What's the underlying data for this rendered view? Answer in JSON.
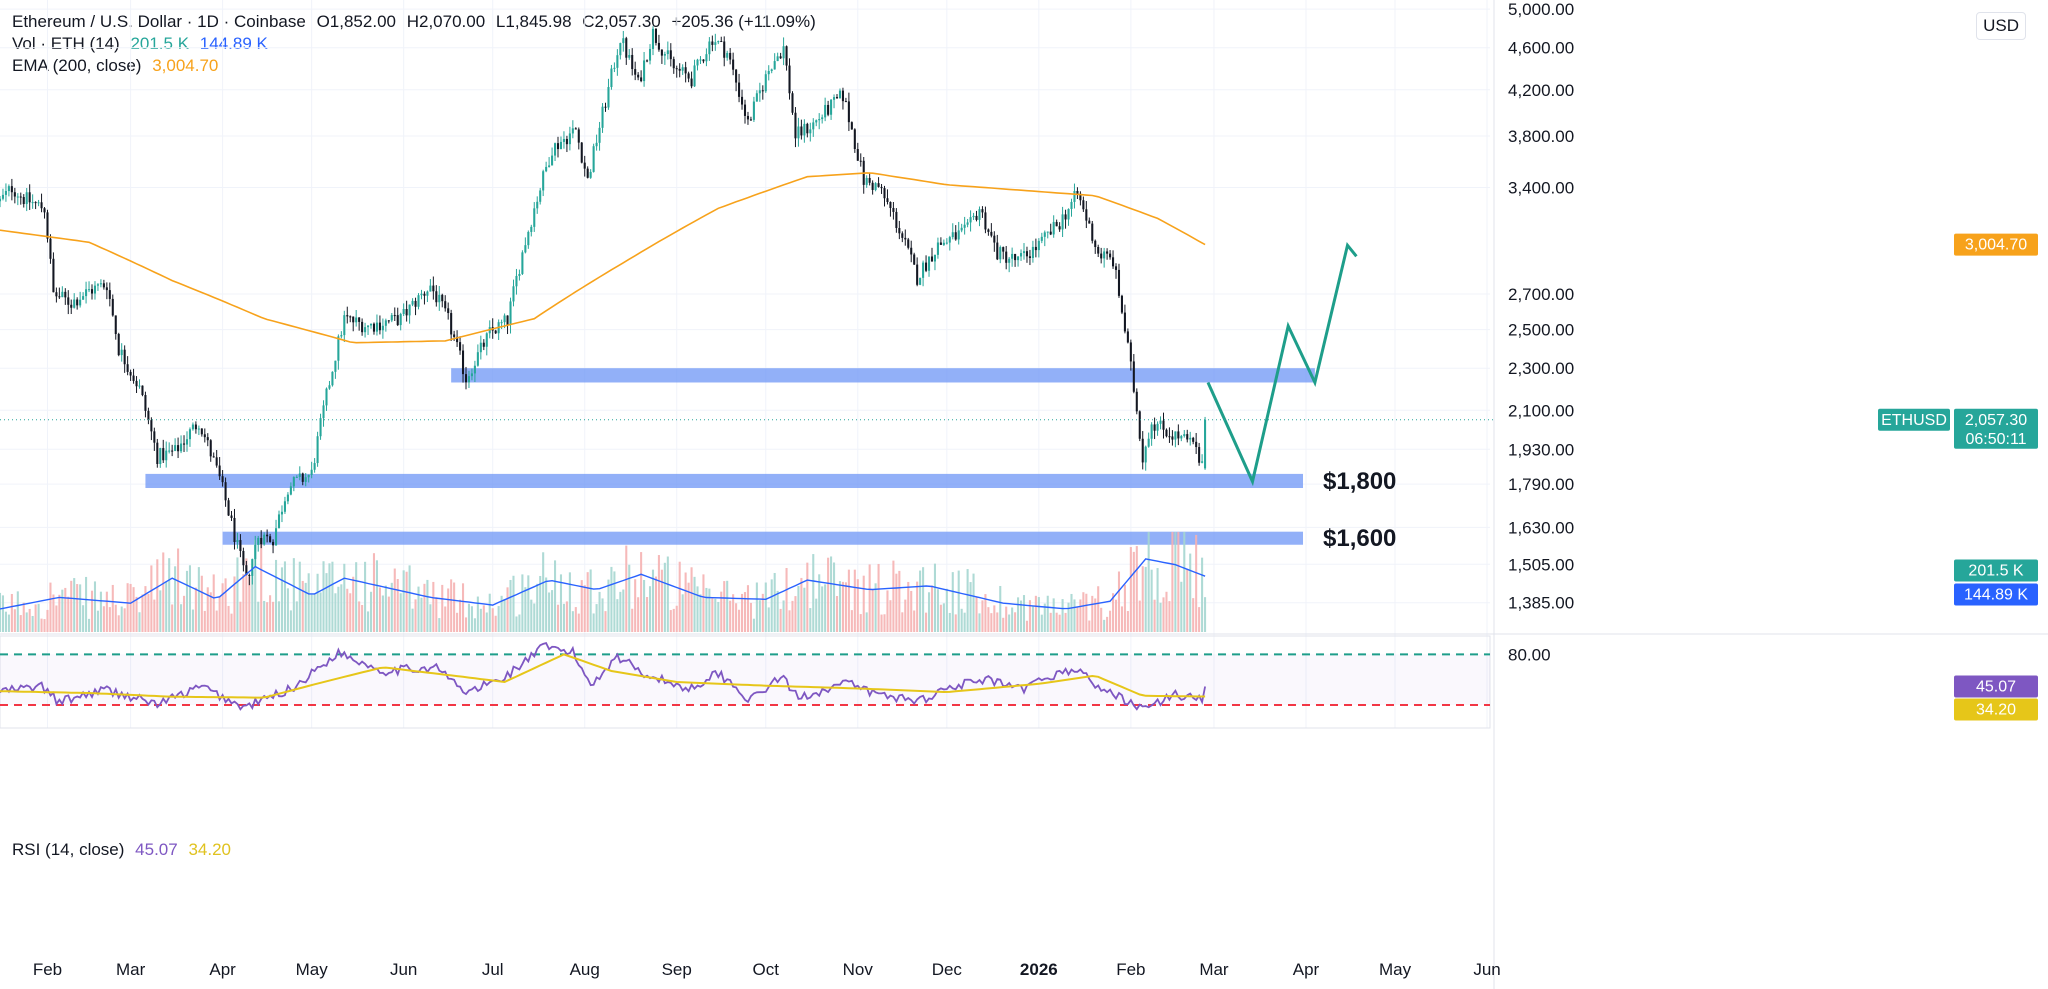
{
  "legend": {
    "symbol": "Ethereum / U.S. Dollar · 1D · Coinbase",
    "open": "O1,852.00",
    "high": "H2,070.00",
    "low": "L1,845.98",
    "close": "C2,057.30",
    "change": "+205.36 (+11.09%)",
    "vol_label": "Vol · ETH (14)",
    "vol_value": "201.5 K",
    "vol_ma_value": "144.89 K",
    "ema_label": "EMA (200, close)",
    "ema_value": "3,004.70",
    "rsi_label": "RSI (14, close)",
    "rsi_value": "45.07",
    "rsi_ma_value": "34.20"
  },
  "currency": "USD",
  "colors": {
    "up": "#26a69a",
    "down": "#131722",
    "ema": "#f7a21b",
    "zone": "#6d95f5",
    "projection": "#1e9e8a",
    "vol_ma": "#2962ff",
    "rsi": "#7e57c2",
    "rsi_ma": "#e6c619",
    "rsi_upper": "#1e9e8a",
    "rsi_lower": "#f23645"
  },
  "chart_data": {
    "type": "candlestick",
    "symbol": "ETHUSD",
    "price_scale": "log",
    "ylim": [
      1300,
      5100
    ],
    "price_ticks": [
      "5,000.00",
      "4,600.00",
      "4,200.00",
      "3,800.00",
      "3,400.00",
      "2,700.00",
      "2,500.00",
      "2,300.00",
      "2,100.00",
      "1,930.00",
      "1,790.00",
      "1,630.00",
      "1,505.00",
      "1,385.00"
    ],
    "price_tick_values": [
      5000,
      4600,
      4200,
      3800,
      3400,
      2700,
      2500,
      2300,
      2100,
      1930,
      1790,
      1630,
      1505,
      1385
    ],
    "x_start": "2025-01-16",
    "x_end": "2026-06-02",
    "month_labels": [
      {
        "label": "Feb",
        "date": "2025-02-01"
      },
      {
        "label": "Mar",
        "date": "2025-03-01"
      },
      {
        "label": "Apr",
        "date": "2025-04-01"
      },
      {
        "label": "May",
        "date": "2025-05-01"
      },
      {
        "label": "Jun",
        "date": "2025-06-01"
      },
      {
        "label": "Jul",
        "date": "2025-07-01"
      },
      {
        "label": "Aug",
        "date": "2025-08-01"
      },
      {
        "label": "Sep",
        "date": "2025-09-01"
      },
      {
        "label": "Oct",
        "date": "2025-10-01"
      },
      {
        "label": "Nov",
        "date": "2025-11-01"
      },
      {
        "label": "Dec",
        "date": "2025-12-01"
      },
      {
        "label": "2026",
        "date": "2026-01-01"
      },
      {
        "label": "Feb",
        "date": "2026-02-01"
      },
      {
        "label": "Mar",
        "date": "2026-03-01"
      },
      {
        "label": "Apr",
        "date": "2026-04-01"
      },
      {
        "label": "May",
        "date": "2026-05-01"
      },
      {
        "label": "Jun",
        "date": "2026-06-01"
      }
    ],
    "close_anchors": [
      [
        "2025-01-16",
        3300
      ],
      [
        "2025-01-20",
        3400
      ],
      [
        "2025-01-24",
        3320
      ],
      [
        "2025-01-31",
        3250
      ],
      [
        "2025-02-03",
        2700
      ],
      [
        "2025-02-09",
        2650
      ],
      [
        "2025-02-15",
        2720
      ],
      [
        "2025-02-21",
        2760
      ],
      [
        "2025-02-25",
        2400
      ],
      [
        "2025-03-04",
        2200
      ],
      [
        "2025-03-10",
        1900
      ],
      [
        "2025-03-16",
        1920
      ],
      [
        "2025-03-24",
        2050
      ],
      [
        "2025-03-31",
        1810
      ],
      [
        "2025-04-06",
        1560
      ],
      [
        "2025-04-09",
        1450
      ],
      [
        "2025-04-13",
        1600
      ],
      [
        "2025-04-18",
        1590
      ],
      [
        "2025-04-23",
        1780
      ],
      [
        "2025-05-01",
        1830
      ],
      [
        "2025-05-08",
        2300
      ],
      [
        "2025-05-12",
        2560
      ],
      [
        "2025-05-20",
        2520
      ],
      [
        "2025-05-31",
        2560
      ],
      [
        "2025-06-10",
        2750
      ],
      [
        "2025-06-16",
        2550
      ],
      [
        "2025-06-22",
        2250
      ],
      [
        "2025-06-30",
        2480
      ],
      [
        "2025-07-06",
        2550
      ],
      [
        "2025-07-11",
        2950
      ],
      [
        "2025-07-21",
        3700
      ],
      [
        "2025-07-29",
        3850
      ],
      [
        "2025-08-02",
        3450
      ],
      [
        "2025-08-09",
        4200
      ],
      [
        "2025-08-13",
        4700
      ],
      [
        "2025-08-19",
        4250
      ],
      [
        "2025-08-24",
        4750
      ],
      [
        "2025-08-31",
        4400
      ],
      [
        "2025-09-06",
        4300
      ],
      [
        "2025-09-13",
        4700
      ],
      [
        "2025-09-18",
        4550
      ],
      [
        "2025-09-25",
        3900
      ],
      [
        "2025-10-03",
        4450
      ],
      [
        "2025-10-07",
        4600
      ],
      [
        "2025-10-11",
        3800
      ],
      [
        "2025-10-17",
        3900
      ],
      [
        "2025-10-27",
        4150
      ],
      [
        "2025-11-03",
        3450
      ],
      [
        "2025-11-08",
        3400
      ],
      [
        "2025-11-13",
        3200
      ],
      [
        "2025-11-21",
        2800
      ],
      [
        "2025-11-28",
        3000
      ],
      [
        "2025-12-08",
        3100
      ],
      [
        "2025-12-12",
        3250
      ],
      [
        "2025-12-18",
        2950
      ],
      [
        "2025-12-25",
        2900
      ],
      [
        "2026-01-01",
        3000
      ],
      [
        "2026-01-08",
        3150
      ],
      [
        "2026-01-14",
        3350
      ],
      [
        "2026-01-21",
        2950
      ],
      [
        "2026-01-26",
        2900
      ],
      [
        "2026-01-31",
        2400
      ],
      [
        "2026-02-05",
        1900
      ],
      [
        "2026-02-08",
        2050
      ],
      [
        "2026-02-14",
        2000
      ],
      [
        "2026-02-22",
        1950
      ],
      [
        "2026-02-25",
        1852
      ],
      [
        "2026-02-26",
        2057.3
      ]
    ],
    "ema200": {
      "name": "EMA (200, close)",
      "points": [
        [
          "2025-01-16",
          3100
        ],
        [
          "2025-02-15",
          3020
        ],
        [
          "2025-03-15",
          2780
        ],
        [
          "2025-04-15",
          2560
        ],
        [
          "2025-05-15",
          2430
        ],
        [
          "2025-06-15",
          2440
        ],
        [
          "2025-07-15",
          2560
        ],
        [
          "2025-08-15",
          2900
        ],
        [
          "2025-09-15",
          3250
        ],
        [
          "2025-10-15",
          3480
        ],
        [
          "2025-11-05",
          3510
        ],
        [
          "2025-12-01",
          3420
        ],
        [
          "2026-01-01",
          3370
        ],
        [
          "2026-01-20",
          3340
        ],
        [
          "2026-02-10",
          3180
        ],
        [
          "2026-02-26",
          3004.7
        ]
      ]
    },
    "zones": [
      {
        "low": 2230,
        "high": 2300,
        "start": "2025-06-17",
        "end": "2026-04-04"
      },
      {
        "low": 1775,
        "high": 1830,
        "start": "2025-03-06",
        "end": "2026-03-31"
      },
      {
        "low": 1570,
        "high": 1615,
        "start": "2025-04-01",
        "end": "2026-03-31"
      }
    ],
    "zone_labels": [
      "$1,800",
      "$1,600"
    ],
    "projection": [
      [
        "2026-02-27",
        2230
      ],
      [
        "2026-03-14",
        1800
      ],
      [
        "2026-03-26",
        2520
      ],
      [
        "2026-04-04",
        2230
      ],
      [
        "2026-04-15",
        3000
      ],
      [
        "2026-04-18",
        2930
      ]
    ],
    "last_price": "2,057.30",
    "last_price_value": 2057.3,
    "countdown": "06:50:11",
    "ema_badge": "3,004.70",
    "ema_badge_value": 3004.7,
    "symbol_label": "ETHUSD",
    "volume": {
      "name": "Vol · ETH (14)",
      "badge_value": "201.5 K",
      "badge_ma": "144.89 K",
      "ma_points": [
        [
          "2025-01-16",
          60
        ],
        [
          "2025-02-05",
          90
        ],
        [
          "2025-03-01",
          75
        ],
        [
          "2025-03-15",
          140
        ],
        [
          "2025-03-30",
          85
        ],
        [
          "2025-04-12",
          170
        ],
        [
          "2025-05-01",
          95
        ],
        [
          "2025-05-12",
          140
        ],
        [
          "2025-06-10",
          90
        ],
        [
          "2025-07-01",
          70
        ],
        [
          "2025-07-20",
          135
        ],
        [
          "2025-08-05",
          110
        ],
        [
          "2025-08-20",
          150
        ],
        [
          "2025-09-10",
          90
        ],
        [
          "2025-10-01",
          85
        ],
        [
          "2025-10-15",
          135
        ],
        [
          "2025-11-05",
          110
        ],
        [
          "2025-11-25",
          120
        ],
        [
          "2025-12-20",
          75
        ],
        [
          "2026-01-10",
          60
        ],
        [
          "2026-01-25",
          80
        ],
        [
          "2026-02-06",
          190
        ],
        [
          "2026-02-16",
          175
        ],
        [
          "2026-02-26",
          145
        ]
      ]
    },
    "rsi": {
      "name": "RSI (14, close)",
      "value": "45.07",
      "ma_value": "34.20",
      "upper": "80.00",
      "upper_value": 80,
      "lower_value": 25,
      "points": [
        [
          "2025-01-16",
          40
        ],
        [
          "2025-01-30",
          45
        ],
        [
          "2025-02-05",
          28
        ],
        [
          "2025-02-20",
          42
        ],
        [
          "2025-03-10",
          26
        ],
        [
          "2025-03-25",
          45
        ],
        [
          "2025-04-08",
          22
        ],
        [
          "2025-04-25",
          44
        ],
        [
          "2025-05-10",
          82
        ],
        [
          "2025-05-25",
          62
        ],
        [
          "2025-06-12",
          66
        ],
        [
          "2025-06-22",
          38
        ],
        [
          "2025-07-05",
          55
        ],
        [
          "2025-07-18",
          88
        ],
        [
          "2025-07-28",
          82
        ],
        [
          "2025-08-03",
          47
        ],
        [
          "2025-08-12",
          78
        ],
        [
          "2025-08-22",
          58
        ],
        [
          "2025-09-05",
          42
        ],
        [
          "2025-09-15",
          60
        ],
        [
          "2025-09-26",
          30
        ],
        [
          "2025-10-06",
          56
        ],
        [
          "2025-10-12",
          33
        ],
        [
          "2025-10-28",
          49
        ],
        [
          "2025-11-08",
          36
        ],
        [
          "2025-11-22",
          30
        ],
        [
          "2025-12-03",
          46
        ],
        [
          "2025-12-15",
          52
        ],
        [
          "2025-12-26",
          41
        ],
        [
          "2026-01-06",
          58
        ],
        [
          "2026-01-14",
          64
        ],
        [
          "2026-01-22",
          42
        ],
        [
          "2026-02-01",
          28
        ],
        [
          "2026-02-06",
          20
        ],
        [
          "2026-02-15",
          36
        ],
        [
          "2026-02-25",
          33
        ],
        [
          "2026-02-26",
          45.07
        ]
      ],
      "ma_points": [
        [
          "2025-01-16",
          40
        ],
        [
          "2025-02-15",
          38
        ],
        [
          "2025-03-15",
          34
        ],
        [
          "2025-04-15",
          33
        ],
        [
          "2025-05-05",
          50
        ],
        [
          "2025-05-25",
          66
        ],
        [
          "2025-06-20",
          56
        ],
        [
          "2025-07-05",
          50
        ],
        [
          "2025-07-25",
          80
        ],
        [
          "2025-08-10",
          62
        ],
        [
          "2025-09-01",
          50
        ],
        [
          "2025-10-01",
          46
        ],
        [
          "2025-11-01",
          43
        ],
        [
          "2025-12-01",
          39
        ],
        [
          "2026-01-01",
          48
        ],
        [
          "2026-01-20",
          57
        ],
        [
          "2026-02-05",
          35
        ],
        [
          "2026-02-26",
          34.2
        ]
      ]
    }
  }
}
